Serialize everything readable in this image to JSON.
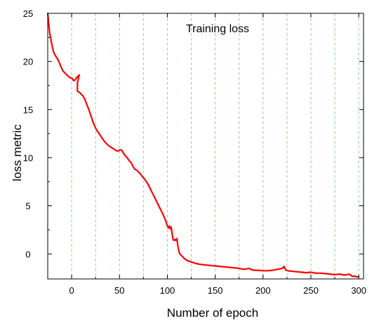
{
  "chart_data": {
    "type": "line",
    "title": "Training loss",
    "xlabel": "Number of epoch",
    "ylabel": "loss metric",
    "xlim": [
      -25,
      305
    ],
    "ylim": [
      -2.6,
      25
    ],
    "xticks": [
      0,
      50,
      100,
      150,
      200,
      250,
      300
    ],
    "yticks": [
      0,
      5,
      10,
      15,
      20,
      25
    ],
    "minor_xticks": [
      -25,
      25,
      75,
      125,
      175,
      225,
      275
    ],
    "grid": "vertical dashed",
    "grid_x": [
      0,
      25,
      50,
      75,
      100,
      125,
      150,
      175,
      200,
      225,
      250,
      275,
      300
    ],
    "series": [
      {
        "color": "#ff0000",
        "x": [
          -25,
          -23,
          -21,
          -19,
          -17,
          -15,
          -13,
          -11,
          -9,
          -7,
          -5,
          -3,
          -1,
          1,
          2,
          4,
          5,
          7,
          8,
          6,
          6,
          8,
          10,
          12,
          14,
          16,
          18,
          20,
          22,
          24,
          26,
          28,
          30,
          32,
          35,
          38,
          41,
          44,
          47,
          49,
          50,
          52,
          54,
          56,
          58,
          60,
          62,
          64,
          66,
          68,
          70,
          72,
          74,
          76,
          78,
          80,
          82,
          84,
          86,
          88,
          90,
          92,
          94,
          96,
          98,
          100,
          101,
          102,
          103,
          104,
          105,
          106,
          107,
          108,
          109,
          110,
          111,
          112,
          113,
          115,
          118,
          121,
          124,
          127,
          130,
          135,
          140,
          145,
          150,
          155,
          160,
          165,
          170,
          175,
          180,
          183,
          186,
          188,
          190,
          195,
          200,
          205,
          210,
          215,
          220,
          222,
          224,
          226,
          230,
          235,
          240,
          245,
          250,
          255,
          260,
          265,
          270,
          275,
          280,
          285,
          288,
          290,
          292,
          294,
          296,
          298,
          300
        ],
        "y": [
          25.0,
          23.0,
          21.9,
          21.0,
          20.6,
          20.3,
          19.9,
          19.4,
          19.0,
          18.8,
          18.6,
          18.4,
          18.3,
          18.2,
          18.0,
          18.1,
          18.3,
          18.5,
          18.6,
          17.8,
          16.9,
          16.8,
          16.6,
          16.4,
          16.0,
          15.5,
          15.0,
          14.4,
          13.8,
          13.3,
          12.9,
          12.6,
          12.3,
          12.0,
          11.6,
          11.3,
          11.1,
          10.9,
          10.7,
          10.7,
          10.8,
          10.8,
          10.5,
          10.2,
          10.0,
          9.7,
          9.5,
          9.1,
          8.8,
          8.7,
          8.5,
          8.3,
          8.0,
          7.8,
          7.5,
          7.2,
          6.8,
          6.4,
          6.0,
          5.6,
          5.2,
          4.8,
          4.4,
          4.0,
          3.5,
          2.9,
          2.7,
          2.9,
          2.6,
          2.8,
          2.1,
          1.5,
          1.4,
          1.5,
          1.4,
          1.6,
          0.8,
          0.3,
          0.0,
          -0.2,
          -0.5,
          -0.7,
          -0.8,
          -0.9,
          -1.0,
          -1.1,
          -1.15,
          -1.2,
          -1.25,
          -1.3,
          -1.35,
          -1.4,
          -1.45,
          -1.5,
          -1.6,
          -1.55,
          -1.5,
          -1.65,
          -1.7,
          -1.7,
          -1.75,
          -1.75,
          -1.7,
          -1.6,
          -1.5,
          -1.3,
          -1.7,
          -1.75,
          -1.8,
          -1.85,
          -1.9,
          -1.95,
          -1.9,
          -2.0,
          -2.0,
          -2.05,
          -2.1,
          -2.15,
          -2.1,
          -2.2,
          -2.15,
          -2.1,
          -2.25,
          -2.35,
          -2.3,
          -2.4,
          -2.35
        ]
      }
    ]
  }
}
